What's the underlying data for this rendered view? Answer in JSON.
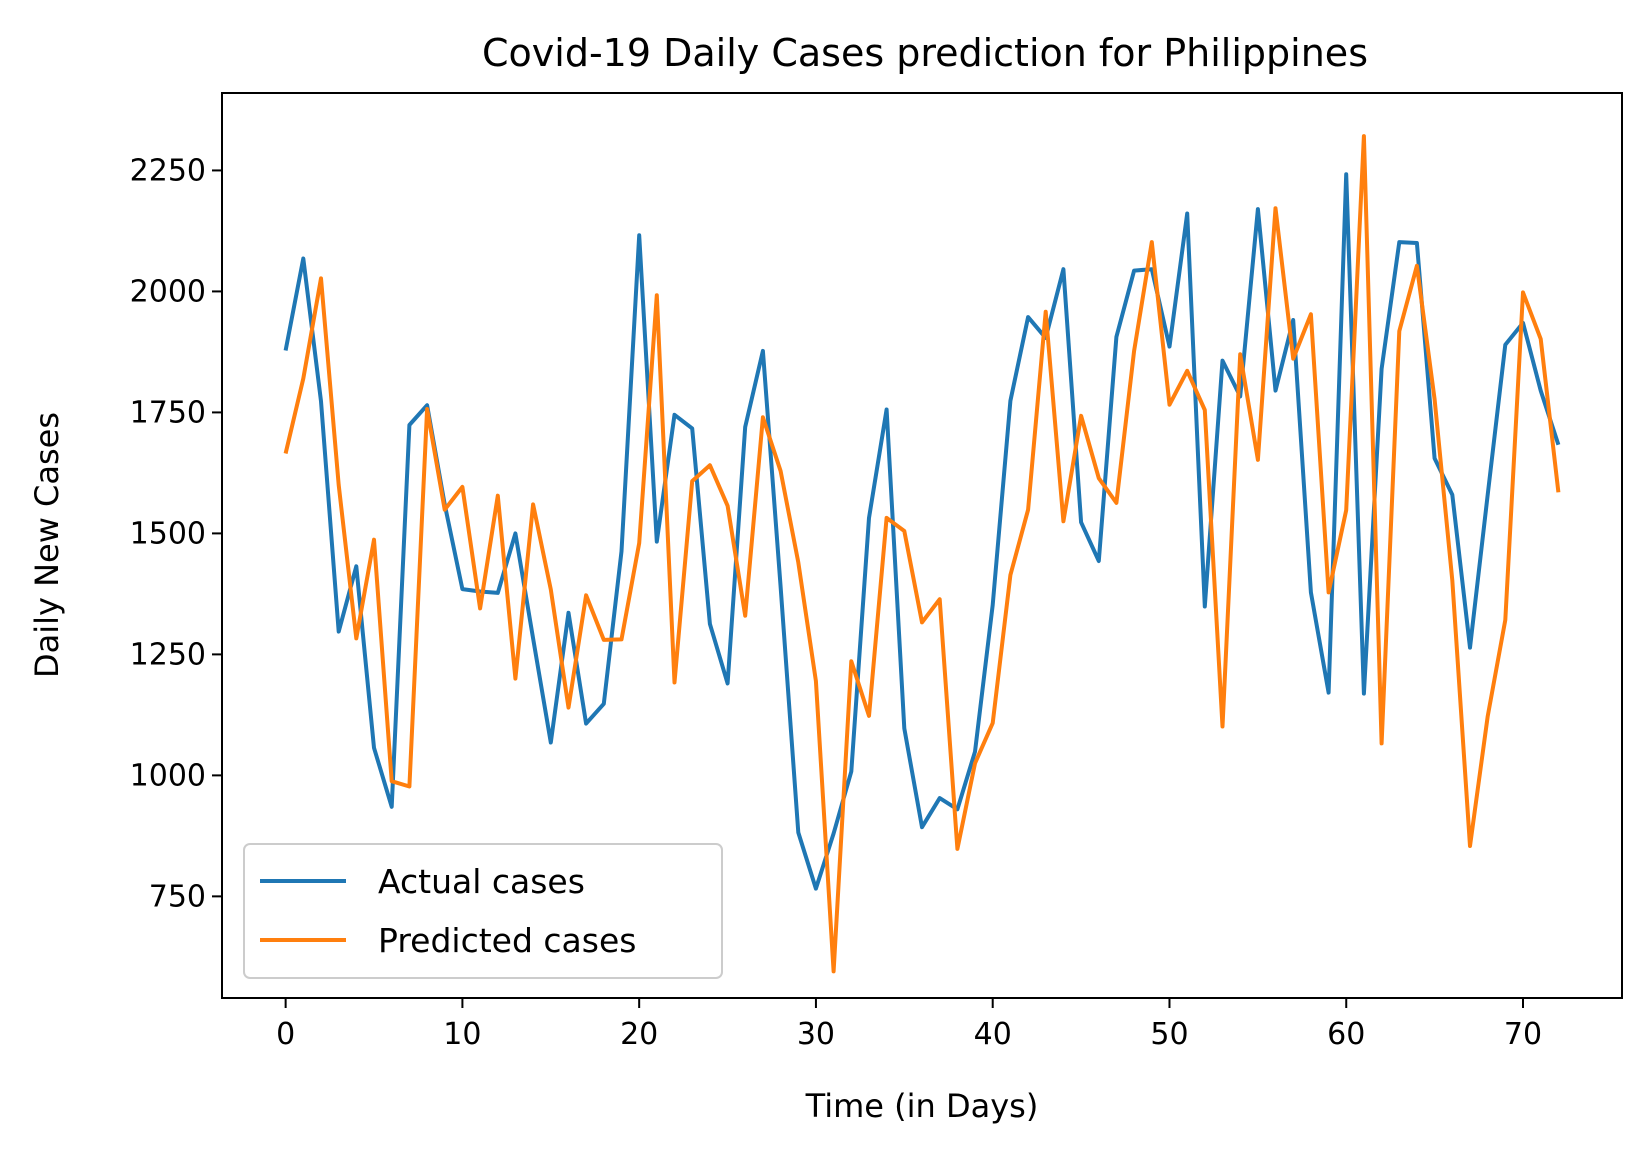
{
  "chart_data": {
    "type": "line",
    "title": "Covid-19 Daily Cases prediction for Philippines",
    "xlabel": "Time (in Days)",
    "ylabel": "Daily New Cases",
    "xlim": [
      -3.6,
      75.6
    ],
    "ylim": [
      540,
      2410
    ],
    "xticks": [
      0,
      10,
      20,
      30,
      40,
      50,
      60,
      70
    ],
    "yticks": [
      750,
      1000,
      1250,
      1500,
      1750,
      2000,
      2250
    ],
    "grid": false,
    "legend_position": "lower-left",
    "x": [
      0,
      1,
      2,
      3,
      4,
      5,
      6,
      7,
      8,
      9,
      10,
      11,
      12,
      13,
      14,
      15,
      16,
      17,
      18,
      19,
      20,
      21,
      22,
      23,
      24,
      25,
      26,
      27,
      28,
      29,
      30,
      31,
      32,
      33,
      34,
      35,
      36,
      37,
      38,
      39,
      40,
      41,
      42,
      43,
      44,
      45,
      46,
      47,
      48,
      49,
      50,
      51,
      52,
      53,
      54,
      55,
      56,
      57,
      58,
      59,
      60,
      61,
      62,
      63,
      64,
      65,
      66,
      67,
      68,
      69,
      70,
      71,
      72
    ],
    "series": [
      {
        "name": "Actual cases",
        "color": "#1f77b4",
        "values": [
          1878,
          2068,
          1773,
          1297,
          1432,
          1057,
          935,
          1724,
          1765,
          1560,
          1385,
          1380,
          1377,
          1500,
          1283,
          1068,
          1336,
          1107,
          1148,
          1463,
          2116,
          1483,
          1745,
          1717,
          1313,
          1190,
          1720,
          1877,
          1390,
          882,
          766,
          880,
          1008,
          1532,
          1756,
          1097,
          893,
          953,
          930,
          1049,
          1352,
          1774,
          1947,
          1904,
          2046,
          1523,
          1443,
          1906,
          2043,
          2046,
          1886,
          2161,
          1349,
          1857,
          1783,
          2170,
          1795,
          1941,
          1378,
          1171,
          2242,
          1169,
          1840,
          2102,
          2100,
          1655,
          1580,
          1264,
          1580,
          1890,
          1935,
          1795,
          1683
        ]
      },
      {
        "name": "Predicted cases",
        "color": "#ff7f0e",
        "values": [
          1665,
          1820,
          2027,
          1600,
          1283,
          1487,
          988,
          977,
          1757,
          1549,
          1596,
          1345,
          1578,
          1200,
          1560,
          1384,
          1140,
          1372,
          1280,
          1281,
          1480,
          1992,
          1192,
          1608,
          1641,
          1557,
          1330,
          1740,
          1629,
          1440,
          1195,
          595,
          1236,
          1123,
          1532,
          1505,
          1316,
          1364,
          848,
          1025,
          1108,
          1414,
          1549,
          1958,
          1525,
          1743,
          1614,
          1563,
          1877,
          2102,
          1766,
          1836,
          1755,
          1101,
          1870,
          1652,
          2172,
          1861,
          1953,
          1378,
          1548,
          2321,
          1066,
          1918,
          2053,
          1777,
          1403,
          854,
          1122,
          1321,
          1998,
          1902,
          1585
        ]
      }
    ]
  }
}
